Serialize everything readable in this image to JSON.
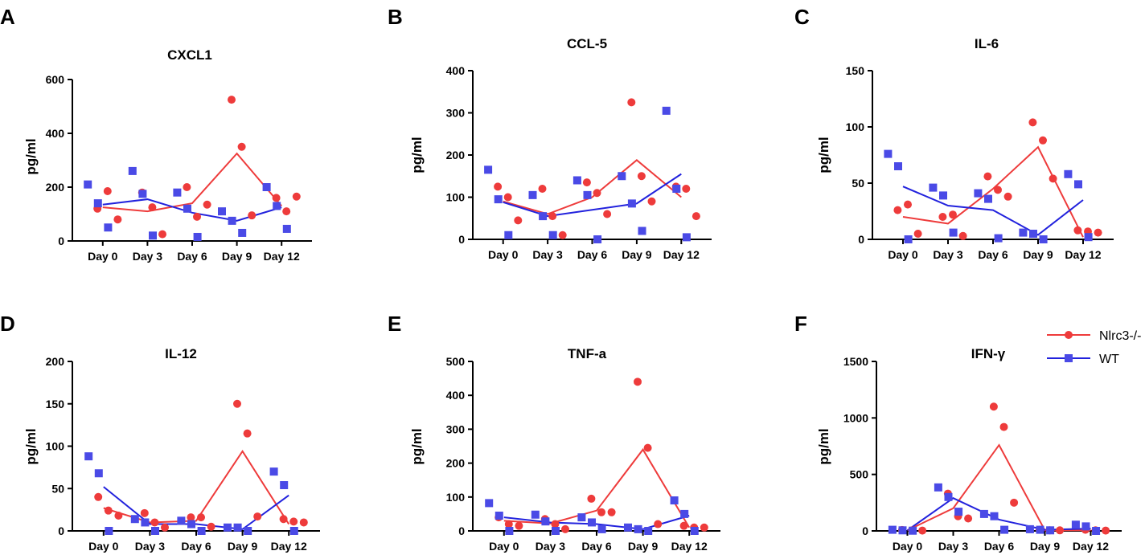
{
  "legend": {
    "items": [
      {
        "name": "Nlrc3-/-",
        "color": "#ee3b3b",
        "marker": "circle"
      },
      {
        "name": "WT",
        "color": "#2222dd",
        "marker": "square"
      }
    ]
  },
  "chart_data": [
    {
      "panel": "A",
      "type": "scatter",
      "title": "CXCL1",
      "xlabel": "",
      "ylabel": "pg/ml",
      "categories": [
        "Day 0",
        "Day 3",
        "Day 6",
        "Day 9",
        "Day 12"
      ],
      "ylim": [
        0,
        600
      ],
      "yticks": [
        0,
        200,
        400,
        600
      ],
      "series": [
        {
          "name": "Nlrc3-/-",
          "mean": [
            125,
            110,
            140,
            325,
            130
          ],
          "points": [
            [
              120,
              185,
              80
            ],
            [
              180,
              125,
              25
            ],
            [
              200,
              90,
              135
            ],
            [
              525,
              350,
              95
            ],
            [
              160,
              110,
              165
            ]
          ]
        },
        {
          "name": "WT",
          "mean": [
            135,
            155,
            105,
            75,
            125
          ],
          "points": [
            [
              210,
              140,
              50
            ],
            [
              260,
              175,
              20
            ],
            [
              180,
              120,
              15
            ],
            [
              110,
              75,
              30
            ],
            [
              200,
              130,
              45
            ]
          ]
        }
      ]
    },
    {
      "panel": "B",
      "type": "scatter",
      "title": "CCL-5",
      "xlabel": "",
      "ylabel": "pg/ml",
      "categories": [
        "Day 0",
        "Day 3",
        "Day 6",
        "Day 9",
        "Day 12"
      ],
      "ylim": [
        0,
        400
      ],
      "yticks": [
        0,
        100,
        200,
        300,
        400
      ],
      "series": [
        {
          "name": "Nlrc3-/-",
          "mean": [
            90,
            60,
            100,
            188,
            100
          ],
          "points": [
            [
              125,
              100,
              45
            ],
            [
              120,
              55,
              10
            ],
            [
              135,
              110,
              60
            ],
            [
              325,
              150,
              90
            ],
            [
              125,
              120,
              55
            ]
          ]
        },
        {
          "name": "WT",
          "mean": [
            88,
            55,
            70,
            85,
            155
          ],
          "points": [
            [
              165,
              95,
              10
            ],
            [
              105,
              55,
              10
            ],
            [
              140,
              105,
              0
            ],
            [
              150,
              85,
              20
            ],
            [
              305,
              120,
              5
            ]
          ]
        }
      ]
    },
    {
      "panel": "C",
      "type": "scatter",
      "title": "IL-6",
      "xlabel": "",
      "ylabel": "pg/ml",
      "categories": [
        "Day 0",
        "Day 3",
        "Day 6",
        "Day 9",
        "Day 12"
      ],
      "ylim": [
        0,
        150
      ],
      "yticks": [
        0,
        50,
        100,
        150
      ],
      "series": [
        {
          "name": "Nlrc3-/-",
          "mean": [
            20,
            14,
            45,
            82,
            2
          ],
          "points": [
            [
              26,
              31,
              5
            ],
            [
              20,
              22,
              3
            ],
            [
              56,
              44,
              38
            ],
            [
              104,
              88,
              54
            ],
            [
              8,
              7,
              6
            ]
          ]
        },
        {
          "name": "WT",
          "mean": [
            47,
            30,
            26,
            4,
            35
          ],
          "points": [
            [
              76,
              65,
              0
            ],
            [
              46,
              39,
              6
            ],
            [
              41,
              36,
              1
            ],
            [
              6,
              5,
              0
            ],
            [
              58,
              49,
              2
            ]
          ]
        }
      ]
    },
    {
      "panel": "D",
      "type": "scatter",
      "title": "IL-12",
      "xlabel": "",
      "ylabel": "pg/ml",
      "categories": [
        "Day 0",
        "Day 3",
        "Day 6",
        "Day 9",
        "Day 12"
      ],
      "ylim": [
        0,
        200
      ],
      "yticks": [
        0,
        50,
        100,
        150,
        200
      ],
      "series": [
        {
          "name": "Nlrc3-/-",
          "mean": [
            27,
            10,
            12,
            94,
            8
          ],
          "points": [
            [
              40,
              24,
              18
            ],
            [
              21,
              10,
              4
            ],
            [
              16,
              16,
              5
            ],
            [
              150,
              115,
              17
            ],
            [
              14,
              11,
              10
            ]
          ]
        },
        {
          "name": "WT",
          "mean": [
            52,
            8,
            8,
            2,
            42
          ],
          "points": [
            [
              88,
              68,
              0
            ],
            [
              14,
              10,
              0
            ],
            [
              12,
              8,
              0
            ],
            [
              4,
              4,
              0
            ],
            [
              70,
              54,
              0
            ]
          ]
        }
      ]
    },
    {
      "panel": "E",
      "type": "scatter",
      "title": "TNF-a",
      "xlabel": "",
      "ylabel": "pg/ml",
      "categories": [
        "Day 0",
        "Day 3",
        "Day 6",
        "Day 9",
        "Day 12"
      ],
      "ylim": [
        0,
        500
      ],
      "yticks": [
        0,
        100,
        200,
        300,
        400,
        500
      ],
      "series": [
        {
          "name": "Nlrc3-/-",
          "mean": [
            30,
            22,
            60,
            240,
            10
          ],
          "points": [
            [
              40,
              20,
              15
            ],
            [
              35,
              20,
              5
            ],
            [
              95,
              55,
              55
            ],
            [
              440,
              245,
              20
            ],
            [
              15,
              10,
              10
            ]
          ]
        },
        {
          "name": "WT",
          "mean": [
            40,
            25,
            20,
            5,
            45
          ],
          "points": [
            [
              82,
              45,
              0
            ],
            [
              48,
              28,
              0
            ],
            [
              40,
              25,
              5
            ],
            [
              10,
              5,
              0
            ],
            [
              90,
              50,
              0
            ]
          ]
        }
      ]
    },
    {
      "panel": "F",
      "type": "scatter",
      "title": "IFN-γ",
      "xlabel": "",
      "ylabel": "pg/ml",
      "categories": [
        "Day 0",
        "Day 3",
        "Day 6",
        "Day 9",
        "Day 12"
      ],
      "ylim": [
        0,
        1500
      ],
      "yticks": [
        0,
        500,
        1000,
        1500
      ],
      "series": [
        {
          "name": "Nlrc3-/-",
          "mean": [
            5,
            200,
            760,
            5,
            5
          ],
          "points": [
            [
              8,
              5,
              3
            ],
            [
              330,
              130,
              110
            ],
            [
              1100,
              920,
              250
            ],
            [
              10,
              5,
              5
            ],
            [
              10,
              5,
              3
            ]
          ]
        },
        {
          "name": "WT",
          "mean": [
            5,
            290,
            100,
            10,
            20
          ],
          "points": [
            [
              10,
              5,
              2
            ],
            [
              385,
              300,
              170
            ],
            [
              150,
              130,
              10
            ],
            [
              15,
              10,
              5
            ],
            [
              55,
              40,
              0
            ]
          ]
        }
      ]
    }
  ]
}
